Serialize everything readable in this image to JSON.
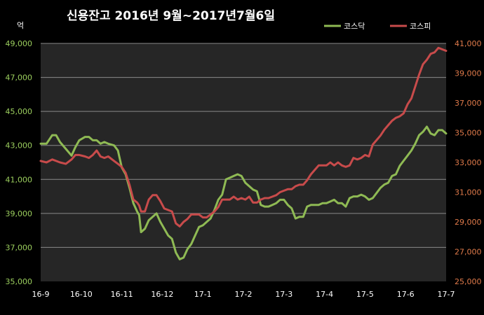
{
  "chart_data": {
    "type": "line",
    "title": "신용잔고  2016년 9월~2017년7월6일",
    "left_unit_label": "억",
    "x_tick_labels": [
      "16-9",
      "16-10",
      "16-11",
      "16-12",
      "17-1",
      "17-2",
      "17-3",
      "17-4",
      "17-5",
      "17-6",
      "17-7"
    ],
    "left_axis": {
      "min": 35000,
      "max": 49000,
      "ticks": [
        35000,
        37000,
        39000,
        41000,
        43000,
        45000,
        47000,
        49000
      ],
      "tick_labels": [
        "35,000",
        "37,000",
        "39,000",
        "41,000",
        "43,000",
        "45,000",
        "47,000",
        "49,000"
      ]
    },
    "right_axis": {
      "min": 25000,
      "max": 41000,
      "ticks": [
        25000,
        27000,
        29000,
        31000,
        33000,
        35000,
        37000,
        39000,
        41000
      ],
      "tick_labels": [
        "25,000",
        "27,000",
        "29,000",
        "31,000",
        "33,000",
        "35,000",
        "37,000",
        "39,000",
        "41,000"
      ]
    },
    "grid": true,
    "legend_position": "top-right",
    "x_count": 210,
    "series": [
      {
        "name": "코스닥",
        "axis": "left",
        "color": "#8fba54",
        "points": [
          [
            0,
            43100
          ],
          [
            3,
            43100
          ],
          [
            6,
            43600
          ],
          [
            8,
            43600
          ],
          [
            10,
            43200
          ],
          [
            13,
            42800
          ],
          [
            16,
            42400
          ],
          [
            18,
            42900
          ],
          [
            20,
            43300
          ],
          [
            23,
            43500
          ],
          [
            25,
            43500
          ],
          [
            27,
            43300
          ],
          [
            29,
            43300
          ],
          [
            31,
            43100
          ],
          [
            33,
            43200
          ],
          [
            35,
            43100
          ],
          [
            38,
            43000
          ],
          [
            40,
            42700
          ],
          [
            42,
            41700
          ],
          [
            44,
            41300
          ],
          [
            46,
            40500
          ],
          [
            48,
            39600
          ],
          [
            50,
            39100
          ],
          [
            51,
            38900
          ],
          [
            52,
            37900
          ],
          [
            54,
            38100
          ],
          [
            56,
            38600
          ],
          [
            58,
            38800
          ],
          [
            60,
            39000
          ],
          [
            62,
            38500
          ],
          [
            64,
            38100
          ],
          [
            66,
            37700
          ],
          [
            68,
            37500
          ],
          [
            70,
            36700
          ],
          [
            72,
            36300
          ],
          [
            74,
            36400
          ],
          [
            76,
            36900
          ],
          [
            78,
            37200
          ],
          [
            80,
            37700
          ],
          [
            82,
            38200
          ],
          [
            84,
            38300
          ],
          [
            86,
            38500
          ],
          [
            88,
            38700
          ],
          [
            90,
            39200
          ],
          [
            92,
            39800
          ],
          [
            94,
            40100
          ],
          [
            96,
            41000
          ],
          [
            98,
            41100
          ],
          [
            100,
            41200
          ],
          [
            102,
            41300
          ],
          [
            104,
            41200
          ],
          [
            106,
            40800
          ],
          [
            108,
            40600
          ],
          [
            110,
            40400
          ],
          [
            112,
            40300
          ],
          [
            114,
            39500
          ],
          [
            116,
            39400
          ],
          [
            118,
            39400
          ],
          [
            120,
            39500
          ],
          [
            122,
            39600
          ],
          [
            124,
            39800
          ],
          [
            126,
            39800
          ],
          [
            128,
            39500
          ],
          [
            130,
            39300
          ],
          [
            132,
            38700
          ],
          [
            134,
            38800
          ],
          [
            136,
            38800
          ],
          [
            138,
            39400
          ],
          [
            140,
            39500
          ],
          [
            142,
            39500
          ],
          [
            144,
            39500
          ],
          [
            146,
            39600
          ],
          [
            148,
            39600
          ],
          [
            150,
            39700
          ],
          [
            152,
            39800
          ],
          [
            154,
            39600
          ],
          [
            156,
            39600
          ],
          [
            158,
            39400
          ],
          [
            160,
            39900
          ],
          [
            162,
            40000
          ],
          [
            164,
            40000
          ],
          [
            166,
            40100
          ],
          [
            168,
            40000
          ],
          [
            170,
            39800
          ],
          [
            172,
            39900
          ],
          [
            174,
            40200
          ],
          [
            176,
            40500
          ],
          [
            178,
            40700
          ],
          [
            180,
            40800
          ],
          [
            182,
            41200
          ],
          [
            184,
            41300
          ],
          [
            186,
            41800
          ],
          [
            188,
            42100
          ],
          [
            190,
            42400
          ],
          [
            192,
            42700
          ],
          [
            194,
            43100
          ],
          [
            196,
            43600
          ],
          [
            198,
            43800
          ],
          [
            200,
            44100
          ],
          [
            202,
            43700
          ],
          [
            204,
            43600
          ],
          [
            206,
            43900
          ],
          [
            208,
            43900
          ],
          [
            210,
            43700
          ]
        ]
      },
      {
        "name": "코스피",
        "axis": "right",
        "color": "#c84b4b",
        "points": [
          [
            0,
            33100
          ],
          [
            3,
            33000
          ],
          [
            6,
            33200
          ],
          [
            8,
            33100
          ],
          [
            10,
            33000
          ],
          [
            13,
            32900
          ],
          [
            16,
            33200
          ],
          [
            18,
            33500
          ],
          [
            20,
            33500
          ],
          [
            23,
            33400
          ],
          [
            25,
            33300
          ],
          [
            27,
            33500
          ],
          [
            29,
            33800
          ],
          [
            31,
            33400
          ],
          [
            33,
            33300
          ],
          [
            35,
            33400
          ],
          [
            38,
            33100
          ],
          [
            40,
            32900
          ],
          [
            42,
            32700
          ],
          [
            44,
            32300
          ],
          [
            46,
            31500
          ],
          [
            48,
            30500
          ],
          [
            50,
            30300
          ],
          [
            51,
            30100
          ],
          [
            52,
            29700
          ],
          [
            54,
            29700
          ],
          [
            56,
            30500
          ],
          [
            58,
            30800
          ],
          [
            60,
            30800
          ],
          [
            62,
            30400
          ],
          [
            64,
            29900
          ],
          [
            66,
            29800
          ],
          [
            68,
            29700
          ],
          [
            70,
            28900
          ],
          [
            72,
            28700
          ],
          [
            74,
            29000
          ],
          [
            76,
            29200
          ],
          [
            78,
            29500
          ],
          [
            80,
            29500
          ],
          [
            82,
            29500
          ],
          [
            84,
            29300
          ],
          [
            86,
            29300
          ],
          [
            88,
            29500
          ],
          [
            90,
            29700
          ],
          [
            92,
            30000
          ],
          [
            94,
            30500
          ],
          [
            96,
            30500
          ],
          [
            98,
            30500
          ],
          [
            100,
            30700
          ],
          [
            102,
            30500
          ],
          [
            104,
            30600
          ],
          [
            106,
            30500
          ],
          [
            108,
            30700
          ],
          [
            110,
            30300
          ],
          [
            112,
            30300
          ],
          [
            114,
            30500
          ],
          [
            116,
            30600
          ],
          [
            118,
            30600
          ],
          [
            120,
            30700
          ],
          [
            122,
            30800
          ],
          [
            124,
            31000
          ],
          [
            126,
            31100
          ],
          [
            128,
            31200
          ],
          [
            130,
            31200
          ],
          [
            132,
            31400
          ],
          [
            134,
            31500
          ],
          [
            136,
            31500
          ],
          [
            138,
            31800
          ],
          [
            140,
            32200
          ],
          [
            142,
            32500
          ],
          [
            144,
            32800
          ],
          [
            146,
            32800
          ],
          [
            148,
            32800
          ],
          [
            150,
            33000
          ],
          [
            152,
            32800
          ],
          [
            154,
            33000
          ],
          [
            156,
            32800
          ],
          [
            158,
            32700
          ],
          [
            160,
            32800
          ],
          [
            162,
            33300
          ],
          [
            164,
            33200
          ],
          [
            166,
            33300
          ],
          [
            168,
            33500
          ],
          [
            170,
            33400
          ],
          [
            172,
            34200
          ],
          [
            174,
            34500
          ],
          [
            176,
            34800
          ],
          [
            178,
            35200
          ],
          [
            180,
            35500
          ],
          [
            182,
            35800
          ],
          [
            184,
            36000
          ],
          [
            186,
            36100
          ],
          [
            188,
            36300
          ],
          [
            190,
            36900
          ],
          [
            192,
            37300
          ],
          [
            194,
            38100
          ],
          [
            196,
            38900
          ],
          [
            198,
            39600
          ],
          [
            200,
            39900
          ],
          [
            202,
            40300
          ],
          [
            204,
            40400
          ],
          [
            206,
            40700
          ],
          [
            208,
            40600
          ],
          [
            210,
            40500
          ]
        ]
      }
    ]
  }
}
